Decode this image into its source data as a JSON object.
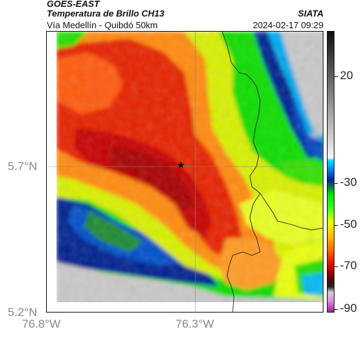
{
  "header": {
    "satellite": "GOES-EAST",
    "product": "Temperatura de Brillo CH13",
    "organization": "SIATA",
    "route": "Vía Medellín - Quibdó 50km",
    "timestamp": "2024-02-17 09:29"
  },
  "map": {
    "y_ticks": [
      "5.7°N",
      "5.2°N"
    ],
    "x_ticks": [
      "76.8°W",
      "76.3°W"
    ],
    "marker": "star-icon"
  },
  "colorbar": {
    "labels": [
      "20",
      "-30",
      "-50",
      "-70",
      "-90"
    ]
  },
  "colors": {
    "cold_red": "#e01a00",
    "orange": "#ff7a10",
    "yellow": "#e8ff00",
    "green": "#00e000",
    "cyan": "#00ccff",
    "dark_blue": "#001a8f",
    "warm_gray": "#c8c8c8",
    "magenta": "#c040c0"
  }
}
